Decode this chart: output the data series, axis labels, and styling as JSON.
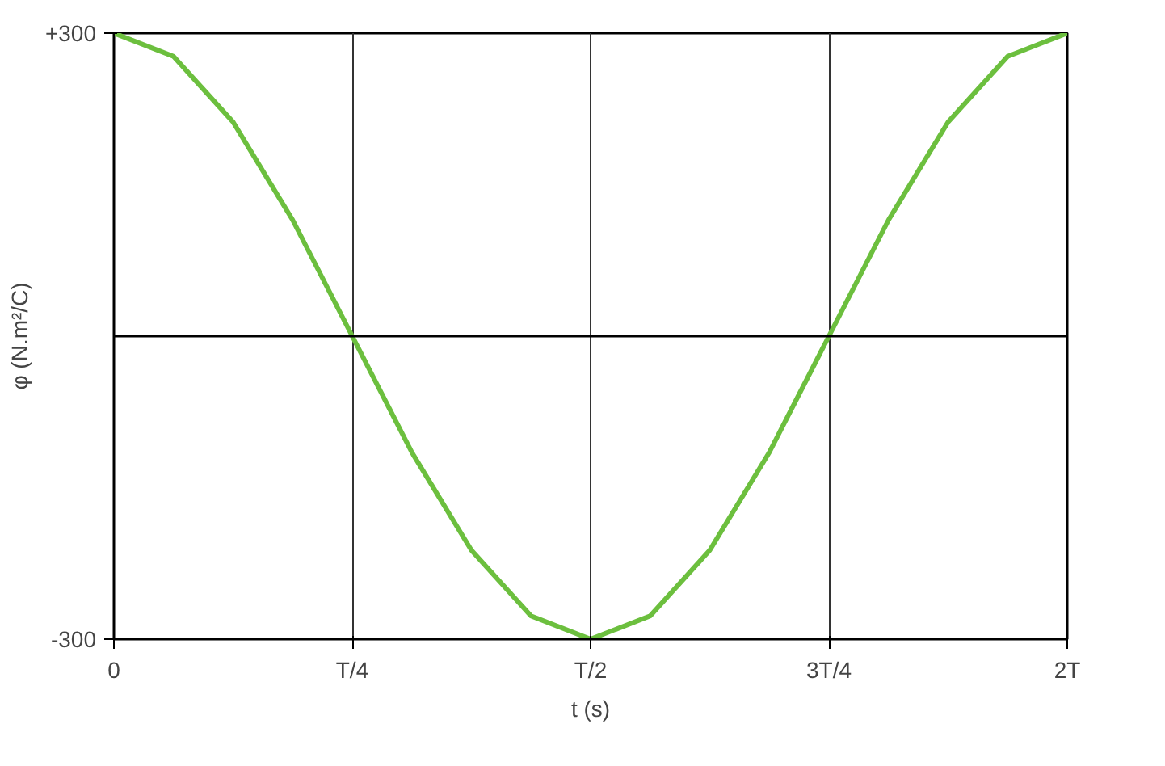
{
  "chart_data": {
    "type": "line",
    "xlabel": "t (s)",
    "ylabel": "φ (N.m²/C)",
    "categories": [
      "0",
      null,
      null,
      null,
      "T/4",
      null,
      null,
      null,
      "T/2",
      null,
      null,
      null,
      "3T/4",
      null,
      null,
      null,
      "2T"
    ],
    "series": [
      {
        "color": "#6cbf3e",
        "values": [
          300,
          277,
          212,
          115,
          0,
          -115,
          -212,
          -277,
          -300,
          -277,
          -212,
          -115,
          0,
          115,
          212,
          277,
          300
        ]
      }
    ],
    "ylim": [
      -300,
      300
    ],
    "yticks": [
      -300,
      {
        "value": 300,
        "label": "+300"
      }
    ],
    "ref_lines": [
      {
        "axis": "y",
        "value": 0,
        "color": "#000000"
      }
    ],
    "grid": "x",
    "marker": "none",
    "line_style": "solid"
  }
}
